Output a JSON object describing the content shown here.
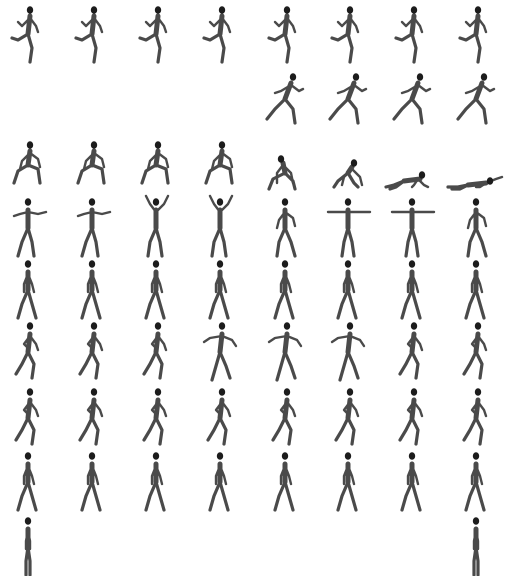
{
  "sprite_sheet": {
    "background": "#ffffff",
    "figure_color": "#4a4a4a",
    "figure_shadow": "#1c1c1c",
    "rows": [
      {
        "name": "run-start",
        "frames": [
          "run-stride",
          "run-stride",
          "run-stride",
          "run-stride",
          "run-stride",
          "run-stride",
          "run-stride",
          "run-stride"
        ]
      },
      {
        "name": "run-lean",
        "frames": [
          null,
          null,
          null,
          null,
          "run-lean",
          "run-lean",
          "run-lean",
          "run-lean"
        ]
      },
      {
        "name": "fall-down",
        "frames": [
          "crouch",
          "crouch",
          "crouch",
          "crouch",
          "kneel",
          "kneel-low",
          "prone-push",
          "prone-flat"
        ]
      },
      {
        "name": "arms-raise",
        "frames": [
          "arms-out",
          "arms-out",
          "arms-up",
          "arms-up",
          "arms-mid",
          "arms-t",
          "arms-t",
          "arms-mid"
        ]
      },
      {
        "name": "walk",
        "frames": [
          "walk",
          "walk",
          "walk",
          "walk",
          "walk",
          "walk",
          "walk",
          "walk"
        ]
      },
      {
        "name": "jog-arms",
        "frames": [
          "jog",
          "jog",
          "jog",
          "jog-arms-out",
          "jog-arms-out",
          "jog-arms-out",
          "jog",
          "jog"
        ]
      },
      {
        "name": "jog",
        "frames": [
          "jog",
          "jog",
          "jog",
          "jog",
          "jog",
          "jog",
          "jog",
          "jog"
        ]
      },
      {
        "name": "walk-2",
        "frames": [
          "walk",
          "walk",
          "walk",
          "walk",
          "walk",
          "walk",
          "walk",
          "walk"
        ]
      },
      {
        "name": "stand",
        "frames": [
          "stand",
          null,
          null,
          null,
          null,
          null,
          null,
          "stand"
        ]
      }
    ]
  }
}
